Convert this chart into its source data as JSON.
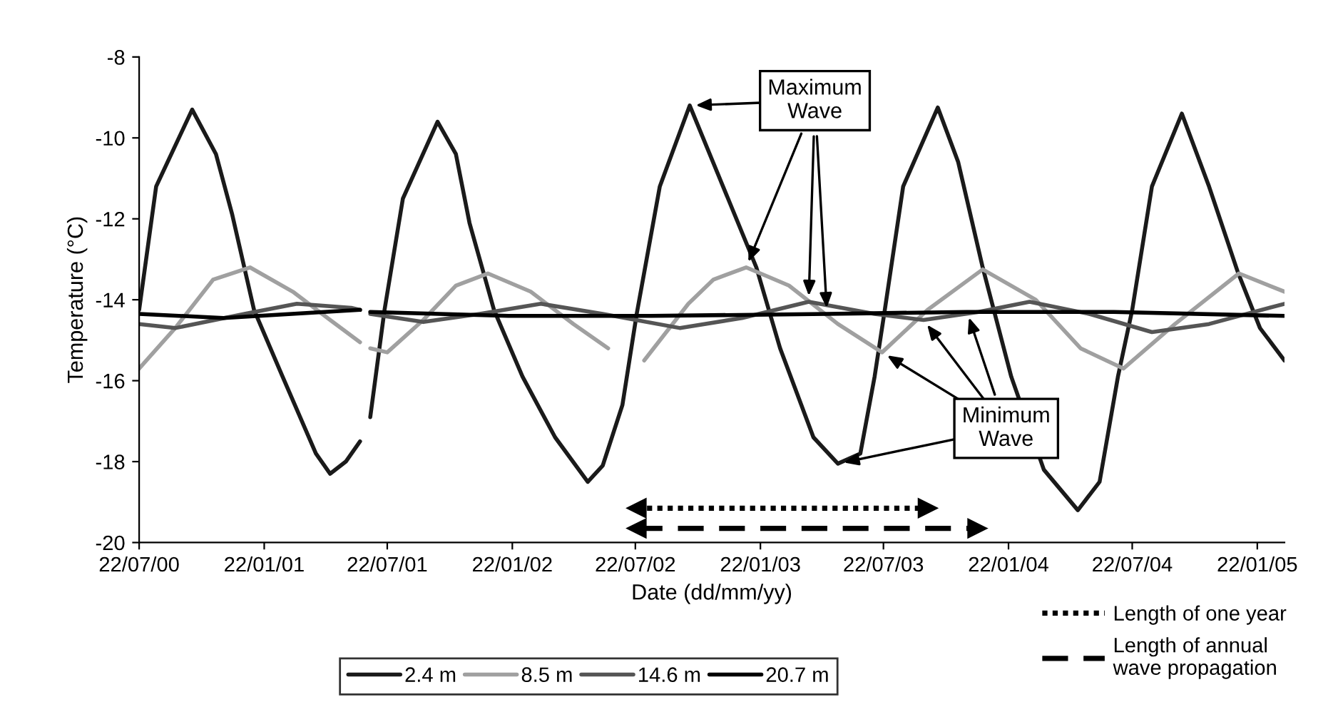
{
  "chart_data": {
    "type": "line",
    "xlabel": "Date (dd/mm/yy)",
    "ylabel": "Temperature (°C)",
    "xlim": [
      "2000-07-22",
      "2005-03-03"
    ],
    "ylim": [
      -20,
      -8
    ],
    "xticks": [
      {
        "value": "2000-07-22",
        "label": "22/07/00"
      },
      {
        "value": "2001-01-22",
        "label": "22/01/01"
      },
      {
        "value": "2001-07-22",
        "label": "22/07/01"
      },
      {
        "value": "2002-01-22",
        "label": "22/01/02"
      },
      {
        "value": "2002-07-22",
        "label": "22/07/02"
      },
      {
        "value": "2003-01-22",
        "label": "22/01/03"
      },
      {
        "value": "2003-07-22",
        "label": "22/07/03"
      },
      {
        "value": "2004-01-22",
        "label": "22/01/04"
      },
      {
        "value": "2004-07-22",
        "label": "22/07/04"
      },
      {
        "value": "2005-01-22",
        "label": "22/01/05"
      }
    ],
    "yticks": [
      -20,
      -18,
      -16,
      -14,
      -12,
      -10,
      -8
    ],
    "grid": false,
    "legend": "bottom",
    "marker": "none",
    "annotations": [
      {
        "text": "Maximum\nWave",
        "x": "2002-10-10",
        "y": -9.2
      },
      {
        "text": "Minimum\nWave",
        "x": "2003-05-16",
        "y": -18.05
      }
    ],
    "series": [
      {
        "name": "2.4 m",
        "color": "#1a1a1a",
        "x": [
          "2000-07-22",
          "2000-08-16",
          "2000-10-08",
          "2000-11-12",
          "2000-12-06",
          "2001-01-07",
          "2001-02-18",
          "2001-04-08",
          "2001-04-29",
          "2001-05-22",
          "2001-06-12",
          "2001-06-19",
          "2001-06-27",
          "2001-07-18",
          "2001-08-14",
          "2001-10-04",
          "2001-10-31",
          "2001-11-20",
          "2001-12-26",
          "2002-02-06",
          "2002-03-26",
          "2002-05-13",
          "2002-06-04",
          "2002-07-03",
          "2002-07-24",
          "2002-08-27",
          "2002-10-10",
          "2002-11-28",
          "2003-01-16",
          "2003-02-20",
          "2003-04-10",
          "2003-05-16",
          "2003-06-18",
          "2003-07-09",
          "2003-07-24",
          "2003-08-20",
          "2003-10-10",
          "2003-11-09",
          "2003-12-15",
          "2004-01-26",
          "2004-03-14",
          "2004-05-03",
          "2004-06-04",
          "2004-07-01",
          "2004-07-22",
          "2004-08-20",
          "2004-10-03",
          "2004-11-12",
          "2004-12-24",
          "2005-01-26",
          "2005-03-03"
        ],
        "values": [
          -14.25,
          -11.2,
          -9.3,
          -10.4,
          -11.9,
          -14.25,
          -15.9,
          -17.8,
          -18.3,
          -18.0,
          -17.5,
          null,
          -16.9,
          -14.25,
          -11.5,
          -9.6,
          -10.4,
          -12.1,
          -14.25,
          -15.9,
          -17.4,
          -18.5,
          -18.1,
          -16.6,
          -14.35,
          -11.2,
          -9.2,
          -11.2,
          -13.2,
          -15.2,
          -17.4,
          -18.05,
          -17.8,
          -15.9,
          -14.25,
          -11.2,
          -9.25,
          -10.6,
          -13.2,
          -15.9,
          -18.2,
          -19.2,
          -18.5,
          -15.9,
          -14.25,
          -11.2,
          -9.4,
          -11.2,
          -13.3,
          -14.7,
          -15.5
        ]
      },
      {
        "name": "8.5 m",
        "color": "#a0a0a0",
        "x": [
          "2000-07-22",
          "2000-09-13",
          "2000-11-08",
          "2001-01-01",
          "2001-03-05",
          "2001-04-29",
          "2001-06-12",
          "2001-06-19",
          "2001-06-27",
          "2001-07-22",
          "2001-09-13",
          "2001-10-31",
          "2001-12-17",
          "2002-02-18",
          "2002-04-22",
          "2002-06-12",
          "2002-07-09",
          "2002-08-04",
          "2002-10-08",
          "2002-11-14",
          "2003-01-01",
          "2003-03-05",
          "2003-05-16",
          "2003-07-20",
          "2003-09-25",
          "2003-12-15",
          "2004-03-02",
          "2004-05-07",
          "2004-07-09",
          "2004-09-23",
          "2004-12-26",
          "2005-03-03"
        ],
        "values": [
          -15.7,
          -14.7,
          -13.5,
          -13.2,
          -13.8,
          -14.5,
          -15.05,
          null,
          -15.2,
          -15.3,
          -14.5,
          -13.65,
          -13.35,
          -13.8,
          -14.6,
          -15.2,
          null,
          -15.5,
          -14.1,
          -13.5,
          -13.2,
          -13.65,
          -14.6,
          -15.3,
          -14.25,
          -13.25,
          -14.0,
          -15.2,
          -15.7,
          -14.6,
          -13.35,
          -13.8
        ]
      },
      {
        "name": "14.6 m",
        "color": "#555555",
        "x": [
          "2000-07-22",
          "2000-09-13",
          "2000-12-24",
          "2001-03-11",
          "2001-05-30",
          "2001-06-12",
          "2001-06-19",
          "2001-06-27",
          "2001-09-13",
          "2001-12-05",
          "2002-03-05",
          "2002-06-04",
          "2002-09-26",
          "2002-12-26",
          "2003-04-03",
          "2003-07-09",
          "2003-09-19",
          "2003-12-09",
          "2004-02-22",
          "2004-05-20",
          "2004-08-20",
          "2004-11-12",
          "2005-03-03"
        ],
        "values": [
          -14.6,
          -14.7,
          -14.35,
          -14.1,
          -14.2,
          -14.25,
          null,
          -14.35,
          -14.55,
          -14.35,
          -14.1,
          -14.35,
          -14.7,
          -14.45,
          -14.05,
          -14.35,
          -14.5,
          -14.3,
          -14.05,
          -14.35,
          -14.8,
          -14.6,
          -14.1
        ]
      },
      {
        "name": "20.7 m",
        "color": "#000000",
        "x": [
          "2000-07-22",
          "2000-11-23",
          "2001-06-12",
          "2001-06-19",
          "2001-06-27",
          "2002-01-16",
          "2002-08-14",
          "2003-04-30",
          "2003-11-22",
          "2004-06-25",
          "2005-03-03"
        ],
        "values": [
          -14.35,
          -14.45,
          -14.25,
          null,
          -14.3,
          -14.4,
          -14.4,
          -14.35,
          -14.3,
          -14.3,
          -14.4
        ]
      },
      {
        "name": "Length of one year",
        "color": "#000000",
        "line_style": "dotted",
        "marker": "triangle",
        "x": [
          "2002-07-24",
          "2003-09-25"
        ],
        "values": [
          -19.15,
          -19.15
        ]
      },
      {
        "name": "Length of annual\nwave propagation",
        "color": "#000000",
        "line_style": "dashed",
        "marker": "triangle",
        "x": [
          "2002-07-24",
          "2003-12-07"
        ],
        "values": [
          -19.65,
          -19.65
        ]
      }
    ]
  }
}
